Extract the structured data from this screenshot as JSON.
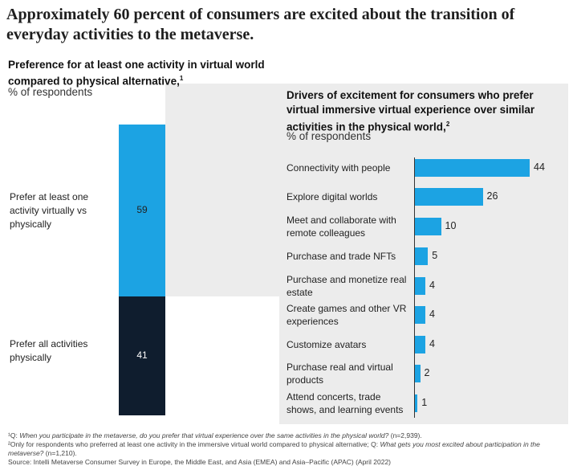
{
  "title": "Approximately 60 percent of consumers are excited about the transition of everyday activities to the metaverse.",
  "left_chart": {
    "title": "Preference for at least one activity in virtual world compared to physical alternative,",
    "title_sup": "1",
    "unit": "% of respondents"
  },
  "right_chart": {
    "title": "Drivers of excitement for consumers who prefer virtual immersive virtual experience over similar activities in the physical world,",
    "title_sup": "2",
    "unit": "% of respondents"
  },
  "chart_data": [
    {
      "type": "bar",
      "stacked": true,
      "categories": [
        "Prefer at least one activity virtually vs physically",
        "Prefer all activities physically"
      ],
      "values": [
        59,
        41
      ],
      "colors": [
        "#1ca3e3",
        "#0f1d2e"
      ]
    },
    {
      "type": "bar",
      "orientation": "horizontal",
      "categories": [
        "Connectivity with people",
        "Explore digital worlds",
        "Meet and collaborate with remote colleagues",
        "Purchase and trade NFTs",
        "Purchase and monetize real estate",
        "Create games and other VR experiences",
        "Customize avatars",
        "Purchase real and virtual products",
        "Attend concerts, trade shows, and learning events"
      ],
      "values": [
        44,
        26,
        10,
        5,
        4,
        4,
        4,
        2,
        1
      ],
      "color": "#1ca3e3"
    }
  ],
  "footnotes": {
    "f1_mark": "¹Q:",
    "f1_text": "When you participate in the metaverse, do you prefer that virtual experience over the same activities in the physical world?",
    "f1_n": "(n=2,939).",
    "f2_mark": "²Only for respondents who preferred at least one activity in the immersive virtual world compared to physical alternative; Q:",
    "f2_text": "What gets you most excited about participation in the metaverse?",
    "f2_n": "(n=1,210).",
    "source": "Source: Intelli Metaverse Consumer Survey in Europe, the Middle East, and Asia (EMEA) and Asia–Pacific (APAC) (April 2022)"
  }
}
